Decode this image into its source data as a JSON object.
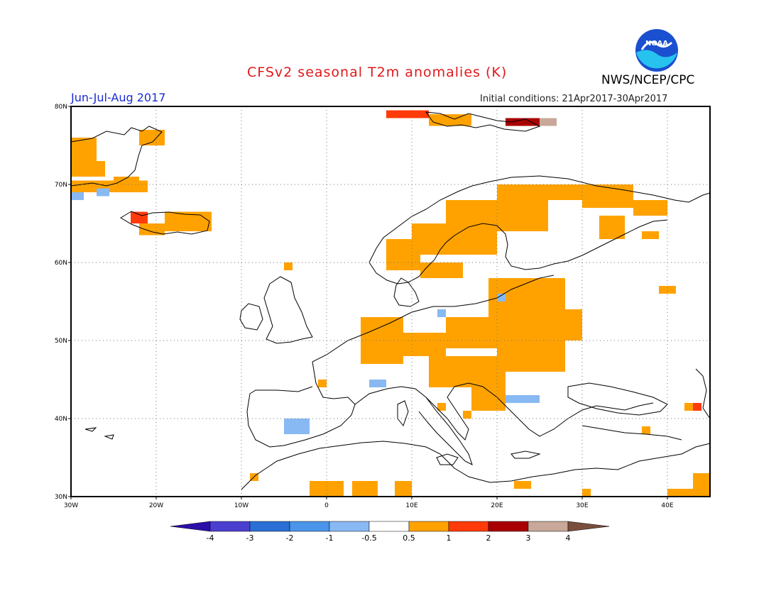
{
  "header": {
    "title": "CFSv2 seasonal T2m anomalies (K)",
    "agency": "NWS/NCEP/CPC",
    "season": "Jun-Jul-Aug 2017",
    "initial_conditions": "Initial conditions: 21Apr2017-30Apr2017",
    "logo_text": "NOAA"
  },
  "map": {
    "lon_range": [
      -30,
      45
    ],
    "lat_range": [
      30,
      80
    ],
    "lon_ticks": [
      "30W",
      "20W",
      "10W",
      "0",
      "10E",
      "20E",
      "30E",
      "40E"
    ],
    "lat_ticks": [
      "80N",
      "70N",
      "60N",
      "50N",
      "40N",
      "30N"
    ],
    "grid": "dotted",
    "units": "K"
  },
  "colorbar": {
    "labels": [
      "-4",
      "-3",
      "-2",
      "-1",
      "-0.5",
      "0.5",
      "1",
      "2",
      "3",
      "4"
    ],
    "colors": [
      "#2b0fa8",
      "#4b3fd0",
      "#2a6fd6",
      "#4a95ea",
      "#88b9f2",
      "#ffffff",
      "#ffa200",
      "#ff3b0a",
      "#a80000",
      "#c8a898",
      "#7a4e3e"
    ]
  },
  "anomaly_colors": {
    "warm_1": "#ffa200",
    "warm_2": "#ff3b0a",
    "warm_3": "#a80000",
    "warm_4": "#c8a898",
    "cool_1": "#88b9f2"
  }
}
